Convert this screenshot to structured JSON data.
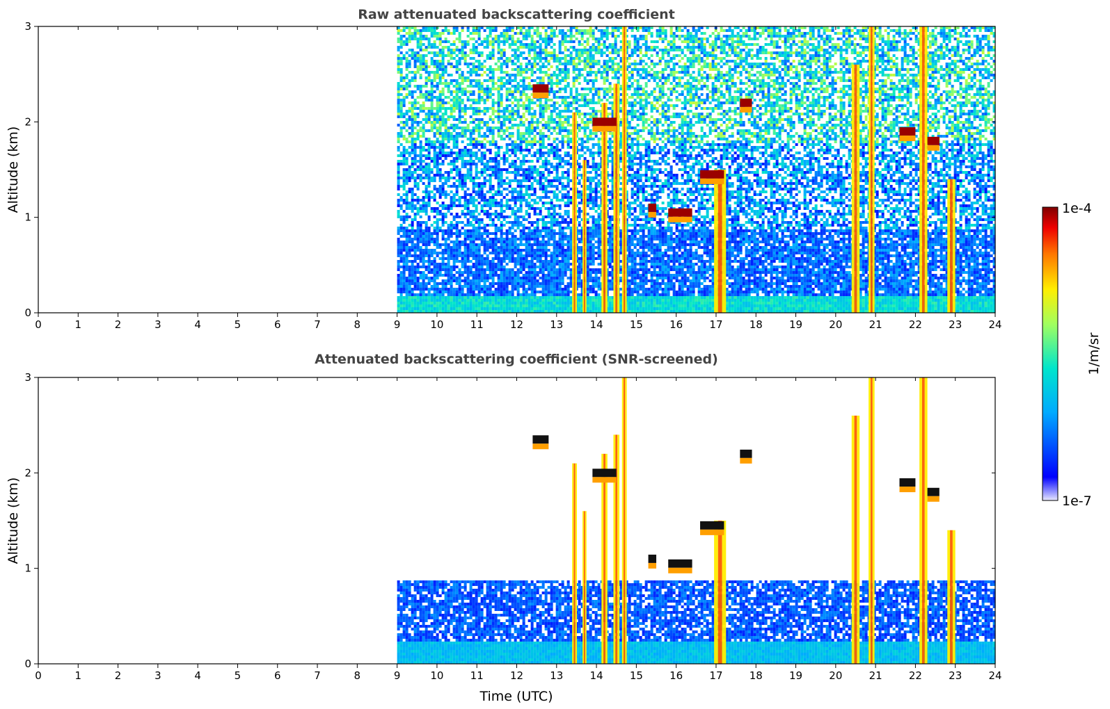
{
  "chart_data": [
    {
      "type": "heatmap",
      "title": "Raw attenuated backscattering coefficient",
      "xlabel": "",
      "ylabel": "Altitude (km)",
      "xlim": [
        0,
        24
      ],
      "ylim": [
        0,
        3
      ],
      "x_ticks": [
        0,
        1,
        2,
        3,
        4,
        5,
        6,
        7,
        8,
        9,
        10,
        11,
        12,
        13,
        14,
        15,
        16,
        17,
        18,
        19,
        20,
        21,
        22,
        23,
        24
      ],
      "y_ticks": [
        0,
        1,
        2,
        3
      ],
      "data_start_hour": 9,
      "data_end_hour": 24,
      "noise": "high",
      "features": [
        {
          "kind": "boundary_layer",
          "x_start": 9,
          "x_end": 24,
          "top_km": 0.2
        },
        {
          "kind": "column",
          "x": 13.45,
          "width": 0.12,
          "top_km": 2.1
        },
        {
          "kind": "column",
          "x": 13.7,
          "width": 0.1,
          "top_km": 1.6
        },
        {
          "kind": "column",
          "x": 14.2,
          "width": 0.15,
          "top_km": 2.2
        },
        {
          "kind": "column",
          "x": 14.5,
          "width": 0.15,
          "top_km": 2.4
        },
        {
          "kind": "column",
          "x": 14.7,
          "width": 0.12,
          "top_km": 3.0
        },
        {
          "kind": "column",
          "x": 17.1,
          "width": 0.3,
          "top_km": 1.5
        },
        {
          "kind": "column",
          "x": 20.5,
          "width": 0.2,
          "top_km": 2.6
        },
        {
          "kind": "column",
          "x": 20.9,
          "width": 0.15,
          "top_km": 3.0
        },
        {
          "kind": "column",
          "x": 22.2,
          "width": 0.2,
          "top_km": 3.0
        },
        {
          "kind": "column",
          "x": 22.9,
          "width": 0.2,
          "top_km": 1.4
        },
        {
          "kind": "layer",
          "x_start": 12.4,
          "x_end": 12.8,
          "alt_km": 2.35
        },
        {
          "kind": "layer",
          "x_start": 13.9,
          "x_end": 14.5,
          "alt_km": 2.0
        },
        {
          "kind": "layer",
          "x_start": 15.3,
          "x_end": 15.5,
          "alt_km": 1.1
        },
        {
          "kind": "layer",
          "x_start": 15.8,
          "x_end": 16.4,
          "alt_km": 1.05
        },
        {
          "kind": "layer",
          "x_start": 16.6,
          "x_end": 17.2,
          "alt_km": 1.45
        },
        {
          "kind": "layer",
          "x_start": 17.6,
          "x_end": 17.9,
          "alt_km": 2.2
        },
        {
          "kind": "layer",
          "x_start": 21.6,
          "x_end": 22.0,
          "alt_km": 1.9
        },
        {
          "kind": "layer",
          "x_start": 22.3,
          "x_end": 22.6,
          "alt_km": 1.8
        }
      ]
    },
    {
      "type": "heatmap",
      "title": "Attenuated backscattering coefficient (SNR-screened)",
      "xlabel": "Time (UTC)",
      "ylabel": "Altitude (km)",
      "xlim": [
        0,
        24
      ],
      "ylim": [
        0,
        3
      ],
      "x_ticks": [
        0,
        1,
        2,
        3,
        4,
        5,
        6,
        7,
        8,
        9,
        10,
        11,
        12,
        13,
        14,
        15,
        16,
        17,
        18,
        19,
        20,
        21,
        22,
        23,
        24
      ],
      "y_ticks": [
        0,
        1,
        2,
        3
      ],
      "data_start_hour": 9,
      "data_end_hour": 24,
      "noise": "screened",
      "features": [
        {
          "kind": "boundary_layer",
          "x_start": 9,
          "x_end": 24,
          "top_km": 0.9
        },
        {
          "kind": "column",
          "x": 13.45,
          "width": 0.12,
          "top_km": 2.1
        },
        {
          "kind": "column",
          "x": 13.7,
          "width": 0.1,
          "top_km": 1.6
        },
        {
          "kind": "column",
          "x": 14.2,
          "width": 0.15,
          "top_km": 2.2
        },
        {
          "kind": "column",
          "x": 14.5,
          "width": 0.15,
          "top_km": 2.4
        },
        {
          "kind": "column",
          "x": 14.7,
          "width": 0.12,
          "top_km": 3.0
        },
        {
          "kind": "column",
          "x": 17.1,
          "width": 0.3,
          "top_km": 1.5
        },
        {
          "kind": "column",
          "x": 20.5,
          "width": 0.2,
          "top_km": 2.6
        },
        {
          "kind": "column",
          "x": 20.9,
          "width": 0.15,
          "top_km": 3.0
        },
        {
          "kind": "column",
          "x": 22.2,
          "width": 0.2,
          "top_km": 3.0
        },
        {
          "kind": "column",
          "x": 22.9,
          "width": 0.2,
          "top_km": 1.4
        },
        {
          "kind": "layer",
          "x_start": 12.4,
          "x_end": 12.8,
          "alt_km": 2.35
        },
        {
          "kind": "layer",
          "x_start": 13.9,
          "x_end": 14.5,
          "alt_km": 2.0
        },
        {
          "kind": "layer",
          "x_start": 15.3,
          "x_end": 15.5,
          "alt_km": 1.1
        },
        {
          "kind": "layer",
          "x_start": 15.8,
          "x_end": 16.4,
          "alt_km": 1.05
        },
        {
          "kind": "layer",
          "x_start": 16.6,
          "x_end": 17.2,
          "alt_km": 1.45
        },
        {
          "kind": "layer",
          "x_start": 17.6,
          "x_end": 17.9,
          "alt_km": 2.2
        },
        {
          "kind": "layer",
          "x_start": 21.6,
          "x_end": 22.0,
          "alt_km": 1.9
        },
        {
          "kind": "layer",
          "x_start": 22.3,
          "x_end": 22.6,
          "alt_km": 1.8
        }
      ]
    }
  ],
  "colorbar": {
    "label": "1/m/sr",
    "max_label": "1e-4",
    "min_label": "1e-7",
    "colormap": "jet",
    "colors": [
      "#e8e8ff",
      "#0000ff",
      "#00aaff",
      "#00e5cc",
      "#a0ff60",
      "#ffee00",
      "#ff7700",
      "#ee0000",
      "#7f0000"
    ]
  }
}
